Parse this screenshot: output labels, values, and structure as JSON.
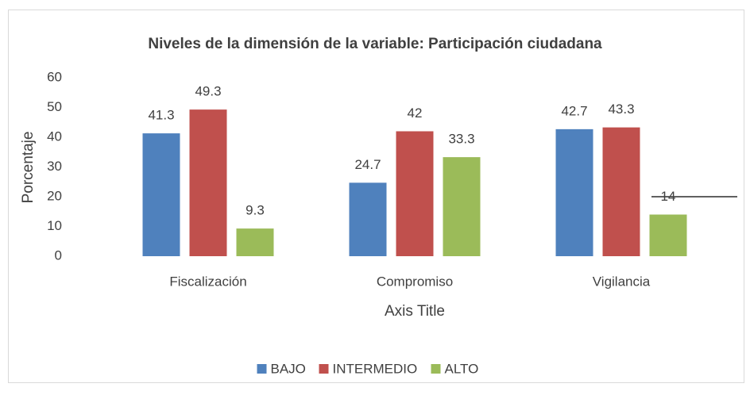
{
  "chart_data": {
    "type": "bar",
    "title": "Niveles de la dimensión de la variable: Participación ciudadana",
    "y_label": "Porcentaje",
    "x_label": "Axis Title",
    "categories": [
      "Fiscalización",
      "Compromiso",
      "Vigilancia"
    ],
    "series": [
      {
        "name": "BAJO",
        "color": "#4f81bd",
        "values": [
          41.3,
          24.7,
          42.7
        ]
      },
      {
        "name": "INTERMEDIO",
        "color": "#c0504d",
        "values": [
          49.3,
          42,
          43.3
        ]
      },
      {
        "name": "ALTO",
        "color": "#9bbb59",
        "values": [
          9.3,
          33.3,
          14
        ]
      }
    ],
    "ylim": [
      0,
      60
    ],
    "yticks": [
      0,
      10,
      20,
      30,
      40,
      50,
      60
    ],
    "grid": false,
    "legend": "bottom"
  }
}
